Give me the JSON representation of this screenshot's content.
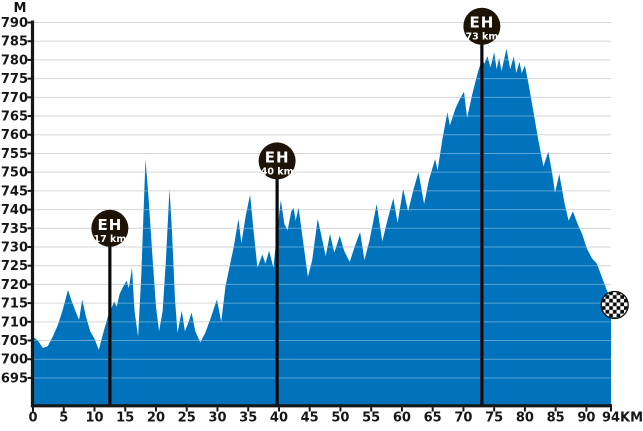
{
  "chart_data": {
    "type": "area",
    "title": "",
    "x_unit_label": "KM",
    "y_unit_label": "M",
    "xlim": [
      0,
      94
    ],
    "ylim": [
      687.5,
      790
    ],
    "grid": true,
    "x_ticks": [
      0,
      5,
      10,
      15,
      20,
      25,
      30,
      35,
      40,
      45,
      50,
      55,
      60,
      65,
      70,
      75,
      80,
      85,
      90,
      94
    ],
    "y_ticks": [
      695,
      700,
      705,
      710,
      715,
      720,
      725,
      730,
      735,
      740,
      745,
      750,
      755,
      760,
      765,
      770,
      775,
      780,
      785,
      790
    ],
    "series": [
      {
        "name": "elevation-profile",
        "points": [
          [
            0,
            706
          ],
          [
            0.8,
            705
          ],
          [
            1.6,
            703
          ],
          [
            2.4,
            703.5
          ],
          [
            3.2,
            706
          ],
          [
            4,
            709
          ],
          [
            4.8,
            713
          ],
          [
            5.7,
            718.5
          ],
          [
            6.3,
            715.5
          ],
          [
            7,
            712.5
          ],
          [
            7.5,
            710.5
          ],
          [
            8,
            716
          ],
          [
            8.6,
            711.5
          ],
          [
            9.3,
            707.5
          ],
          [
            10,
            705.5
          ],
          [
            10.7,
            702.5
          ],
          [
            11.5,
            707.5
          ],
          [
            12.2,
            711.5
          ],
          [
            12.6,
            713
          ],
          [
            13.2,
            715.5
          ],
          [
            13.6,
            714
          ],
          [
            14.1,
            717.5
          ],
          [
            14.7,
            719.5
          ],
          [
            15.2,
            721
          ],
          [
            15.6,
            719
          ],
          [
            16.1,
            724.5
          ],
          [
            16.5,
            713
          ],
          [
            17.1,
            706
          ],
          [
            17.6,
            722
          ],
          [
            18.3,
            753.5
          ],
          [
            18.8,
            743
          ],
          [
            19.4,
            728
          ],
          [
            20,
            714
          ],
          [
            20.5,
            707.5
          ],
          [
            21.1,
            713
          ],
          [
            21.6,
            726
          ],
          [
            22.2,
            745.5
          ],
          [
            22.6,
            734
          ],
          [
            23.1,
            716
          ],
          [
            23.5,
            707
          ],
          [
            24.2,
            713
          ],
          [
            24.7,
            707.5
          ],
          [
            25.2,
            709.5
          ],
          [
            25.8,
            712.5
          ],
          [
            26.4,
            707.5
          ],
          [
            27.2,
            704.5
          ],
          [
            28,
            707
          ],
          [
            28.9,
            711
          ],
          [
            29.9,
            716
          ],
          [
            30.6,
            710
          ],
          [
            31.3,
            719.5
          ],
          [
            32,
            725
          ],
          [
            32.7,
            730.5
          ],
          [
            33.4,
            737.5
          ],
          [
            33.9,
            731
          ],
          [
            34.6,
            738.5
          ],
          [
            35.3,
            744
          ],
          [
            35.9,
            734
          ],
          [
            36.5,
            724.5
          ],
          [
            37.3,
            728
          ],
          [
            37.8,
            725.5
          ],
          [
            38.4,
            729
          ],
          [
            39.1,
            724.5
          ],
          [
            39.7,
            734
          ],
          [
            40.3,
            742.5
          ],
          [
            40.9,
            736
          ],
          [
            41.4,
            734.5
          ],
          [
            42,
            739.5
          ],
          [
            42.4,
            740.5
          ],
          [
            42.7,
            737
          ],
          [
            43.2,
            740.5
          ],
          [
            43.8,
            733
          ],
          [
            44.7,
            722
          ],
          [
            45.4,
            726.5
          ],
          [
            46.3,
            737.5
          ],
          [
            46.9,
            733
          ],
          [
            47.6,
            727.5
          ],
          [
            48.3,
            733.5
          ],
          [
            49,
            728.5
          ],
          [
            49.9,
            733
          ],
          [
            50.6,
            729
          ],
          [
            51.5,
            726
          ],
          [
            52.4,
            730.5
          ],
          [
            53.2,
            734
          ],
          [
            53.9,
            726.5
          ],
          [
            54.7,
            731.5
          ],
          [
            55.9,
            741.5
          ],
          [
            56.8,
            731.5
          ],
          [
            57.7,
            737.5
          ],
          [
            58.6,
            743
          ],
          [
            59.3,
            736.5
          ],
          [
            60.2,
            745.5
          ],
          [
            61,
            739.5
          ],
          [
            61.9,
            745.5
          ],
          [
            62.7,
            750
          ],
          [
            63.6,
            741.5
          ],
          [
            64.4,
            748
          ],
          [
            65.4,
            753.5
          ],
          [
            65.8,
            750.5
          ],
          [
            66.6,
            759
          ],
          [
            67.4,
            766
          ],
          [
            67.8,
            762.5
          ],
          [
            68.7,
            767
          ],
          [
            69.4,
            769.5
          ],
          [
            70.1,
            771.5
          ],
          [
            70.6,
            764.5
          ],
          [
            71.4,
            770.5
          ],
          [
            72,
            774.5
          ],
          [
            72.4,
            777
          ],
          [
            73,
            780
          ],
          [
            73.4,
            779
          ],
          [
            73.9,
            781
          ],
          [
            74.4,
            778
          ],
          [
            75,
            782
          ],
          [
            75.4,
            777.5
          ],
          [
            75.8,
            780.5
          ],
          [
            76.2,
            777
          ],
          [
            77,
            783
          ],
          [
            77.6,
            777.5
          ],
          [
            78.2,
            781
          ],
          [
            78.6,
            776.5
          ],
          [
            79.1,
            779.5
          ],
          [
            79.5,
            776.5
          ],
          [
            80,
            778.5
          ],
          [
            80.6,
            773.5
          ],
          [
            81.4,
            766
          ],
          [
            82.2,
            758.5
          ],
          [
            83,
            751.5
          ],
          [
            83.8,
            755.5
          ],
          [
            84.4,
            750
          ],
          [
            84.9,
            744.5
          ],
          [
            85.6,
            749.5
          ],
          [
            86.4,
            742
          ],
          [
            87.1,
            737
          ],
          [
            87.8,
            739.5
          ],
          [
            88.6,
            736
          ],
          [
            89.3,
            733.5
          ],
          [
            90.1,
            729.5
          ],
          [
            90.9,
            727
          ],
          [
            91.7,
            725.5
          ],
          [
            92.5,
            722
          ],
          [
            93.3,
            718.5
          ],
          [
            94,
            716
          ]
        ]
      }
    ],
    "markers": [
      {
        "label": "EH",
        "sublabel": "17 km",
        "x_km": 12.5,
        "circle_y_m": 735
      },
      {
        "label": "EH",
        "sublabel": "40 km",
        "x_km": 39.7,
        "circle_y_m": 753
      },
      {
        "label": "EH",
        "sublabel": "73 km",
        "x_km": 73,
        "circle_y_m": 789
      }
    ],
    "finish": {
      "type": "checkered-flag-dot",
      "x_km": 94.6,
      "y_m": 714.5
    },
    "legend_position": "none"
  },
  "colors": {
    "background": "#ffffff",
    "profile_fill": "#0073bc",
    "gridline": "#d6d6d6",
    "gridline_on_fill": "rgba(255,255,255,0.35)",
    "axis": "#161616",
    "label_text": "#161616",
    "marker_circle": "#1d1306",
    "marker_stick": "#0a0a0a",
    "marker_text": "#ffffff",
    "finish_dark": "#0d0d0d",
    "finish_light": "#ffffff"
  }
}
